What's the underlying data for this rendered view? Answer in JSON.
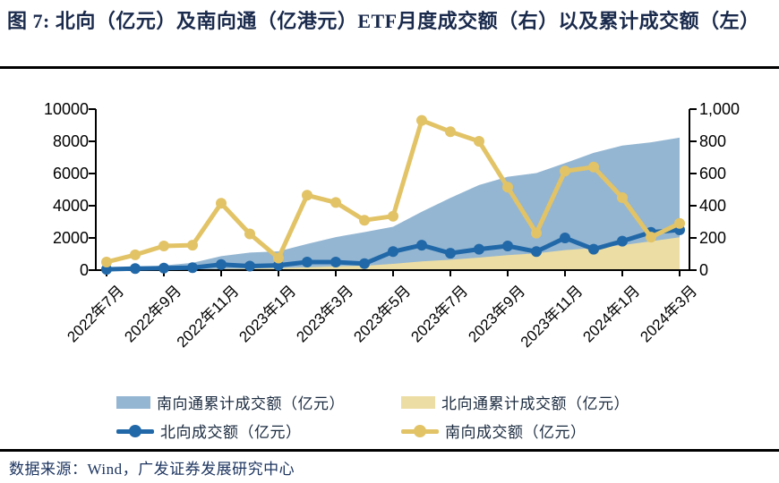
{
  "figure": {
    "title": "图 7: 北向（亿元）及南向通（亿港元）ETF月度成交额（右）以及累计成交额（左）",
    "source": "数据来源：Wind，广发证券发展研究中心"
  },
  "colors": {
    "south_cumulative_area": "#94b6d2",
    "north_cumulative_area": "#ecdda4",
    "north_line": "#2168a8",
    "south_line": "#e2c366",
    "axis": "#000000",
    "title_text": "#1a2a4c",
    "source_text": "#1d3560"
  },
  "chart_data": {
    "type": "combo-area-line",
    "x_months": [
      "2022年7月",
      "2022年8月",
      "2022年9月",
      "2022年10月",
      "2022年11月",
      "2022年12月",
      "2023年1月",
      "2023年2月",
      "2023年3月",
      "2023年4月",
      "2023年5月",
      "2023年6月",
      "2023年7月",
      "2023年8月",
      "2023年9月",
      "2023年10月",
      "2023年11月",
      "2023年12月",
      "2024年1月",
      "2024年2月",
      "2024年3月"
    ],
    "x_tick_labels": [
      "2022年7月",
      "2022年9月",
      "2022年11月",
      "2023年1月",
      "2023年3月",
      "2023年5月",
      "2023年7月",
      "2023年9月",
      "2023年11月",
      "2024年1月",
      "2024年3月"
    ],
    "left_axis": {
      "min": 0,
      "max": 10000,
      "tick_labels": [
        "0",
        "2000",
        "4000",
        "6000",
        "8000",
        "10000"
      ],
      "grid": false
    },
    "right_axis": {
      "min": 0,
      "max": 1000,
      "tick_labels": [
        "0",
        "200",
        "400",
        "600",
        "800",
        "1,000"
      ],
      "grid": false
    },
    "legend_position": "bottom",
    "series": [
      {
        "id": "south-cumulative-area",
        "name": "南向通累计成交额（亿元）",
        "type": "area",
        "axis": "left",
        "color": "#94b6d2",
        "values": [
          50,
          145,
          295,
          450,
          865,
          1090,
          1165,
          1630,
          2050,
          2360,
          2695,
          3625,
          4485,
          5285,
          5800,
          6030,
          6645,
          7285,
          7735,
          7940,
          8230
        ]
      },
      {
        "id": "north-cumulative-area",
        "name": "北向通累计成交额（亿元）",
        "type": "area",
        "axis": "left",
        "color": "#ecdda4",
        "values": [
          5,
          15,
          27,
          42,
          77,
          102,
          132,
          182,
          232,
          272,
          387,
          542,
          647,
          777,
          927,
          1042,
          1242,
          1372,
          1552,
          1787,
          2037
        ]
      },
      {
        "id": "north-monthly-line",
        "name": "北向成交额（亿元）",
        "type": "line",
        "axis": "right",
        "color": "#2168a8",
        "values": [
          5,
          10,
          12,
          15,
          35,
          25,
          30,
          50,
          50,
          40,
          115,
          155,
          105,
          130,
          150,
          115,
          200,
          130,
          180,
          235,
          250
        ]
      },
      {
        "id": "south-monthly-line",
        "name": "南向成交额（亿元）",
        "type": "line",
        "axis": "right",
        "color": "#e2c366",
        "values": [
          50,
          95,
          150,
          155,
          415,
          225,
          75,
          465,
          420,
          310,
          335,
          930,
          860,
          800,
          515,
          230,
          615,
          640,
          450,
          205,
          290
        ]
      }
    ]
  }
}
